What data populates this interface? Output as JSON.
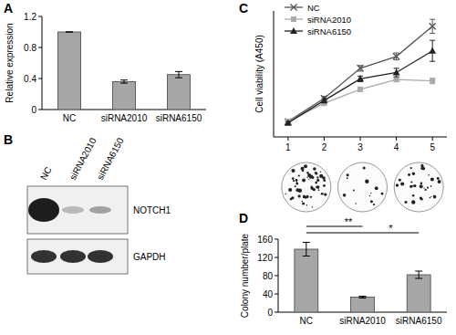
{
  "panel_labels": [
    "A",
    "B",
    "C",
    "D"
  ],
  "chart_data": [
    {
      "type": "bar",
      "y_label": "Relative expression",
      "categories": [
        "NC",
        "siRNA2010",
        "siRNA6150"
      ],
      "values": [
        1.0,
        0.36,
        0.45
      ],
      "errors": [
        0,
        0.02,
        0.04
      ],
      "color": "#a6a6a6",
      "ylim": [
        0,
        1.2
      ],
      "yticks": [
        0,
        0.4,
        0.8,
        1.2
      ]
    },
    {
      "type": "line",
      "y_label": "Cell viability (A450)",
      "x": [
        1,
        2,
        3,
        4,
        5
      ],
      "xlim": [
        0.6,
        5.4
      ],
      "xticks": [
        1,
        2,
        3,
        4,
        5
      ],
      "ylim": [
        0.2,
        2.0
      ],
      "tick_labels": "x",
      "legend": "top-left",
      "series": [
        {
          "name": "NC",
          "color": "#555555",
          "marker": "x",
          "values": [
            0.42,
            0.75,
            1.18,
            1.35,
            1.78
          ],
          "errors": [
            0.02,
            0.03,
            0.04,
            0.05,
            0.1
          ]
        },
        {
          "name": "siRNA2010",
          "color": "#aaaaaa",
          "marker": "square",
          "values": [
            0.42,
            0.68,
            0.88,
            1.02,
            1.0
          ],
          "errors": [
            0.02,
            0.03,
            0.03,
            0.03,
            0.04
          ]
        },
        {
          "name": "siRNA6150",
          "color": "#222222",
          "marker": "triangle",
          "values": [
            0.4,
            0.72,
            1.03,
            1.12,
            1.43
          ],
          "errors": [
            0.02,
            0.03,
            0.04,
            0.06,
            0.15
          ]
        }
      ]
    },
    {
      "type": "bar",
      "y_label": "Colony number/plate",
      "categories": [
        "NC",
        "siRNA2010",
        "siRNA6150"
      ],
      "values": [
        138,
        33,
        82
      ],
      "errors": [
        15,
        2,
        8
      ],
      "color": "#a6a6a6",
      "ylim": [
        0,
        160
      ],
      "yticks": [
        0,
        40,
        80,
        120,
        160
      ],
      "annotations": [
        {
          "label": "**",
          "from": 0,
          "to": 1
        },
        {
          "label": "*",
          "from": 0,
          "to": 2
        }
      ]
    }
  ],
  "blot": {
    "lanes": [
      "NC",
      "siRNA2010",
      "siRNA6150"
    ],
    "rows": [
      "NOTCH1",
      "GAPDH"
    ]
  }
}
